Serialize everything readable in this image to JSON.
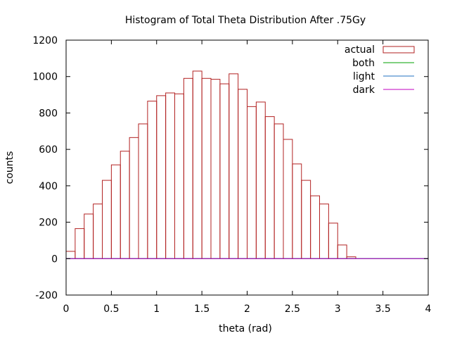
{
  "chart_data": {
    "type": "bar",
    "title": "Histogram of Total Theta Distribution After .75Gy",
    "xlabel": "theta (rad)",
    "ylabel": "counts",
    "xlim": [
      0,
      4
    ],
    "ylim": [
      -200,
      1200
    ],
    "x_ticks": [
      "0",
      "0.5",
      "1",
      "1.5",
      "2",
      "2.5",
      "3",
      "3.5",
      "4"
    ],
    "y_ticks": [
      "-200",
      "0",
      "200",
      "400",
      "600",
      "800",
      "1000",
      "1200"
    ],
    "grid": false,
    "legend_position": "top-right",
    "bin_width": 0.1,
    "series": [
      {
        "name": "actual",
        "style": "histogram-outline",
        "color": "#b22222",
        "x": [
          0.05,
          0.15,
          0.25,
          0.35,
          0.45,
          0.55,
          0.65,
          0.75,
          0.85,
          0.95,
          1.05,
          1.15,
          1.25,
          1.35,
          1.45,
          1.55,
          1.65,
          1.75,
          1.85,
          1.95,
          2.05,
          2.15,
          2.25,
          2.35,
          2.45,
          2.55,
          2.65,
          2.75,
          2.85,
          2.95,
          3.05,
          3.15
        ],
        "values": [
          40,
          165,
          245,
          300,
          430,
          515,
          590,
          665,
          740,
          865,
          895,
          910,
          905,
          990,
          1030,
          990,
          985,
          960,
          1015,
          930,
          835,
          860,
          780,
          740,
          655,
          520,
          430,
          345,
          300,
          195,
          75,
          10
        ]
      },
      {
        "name": "both",
        "style": "line",
        "color": "#00a000",
        "x": [
          0,
          4
        ],
        "values": [
          0,
          0
        ]
      },
      {
        "name": "light",
        "style": "line",
        "color": "#2070c0",
        "x": [
          0,
          4
        ],
        "values": [
          0,
          0
        ]
      },
      {
        "name": "dark",
        "style": "line",
        "color": "#c000c0",
        "x": [
          0,
          4
        ],
        "values": [
          0,
          0
        ]
      }
    ]
  }
}
